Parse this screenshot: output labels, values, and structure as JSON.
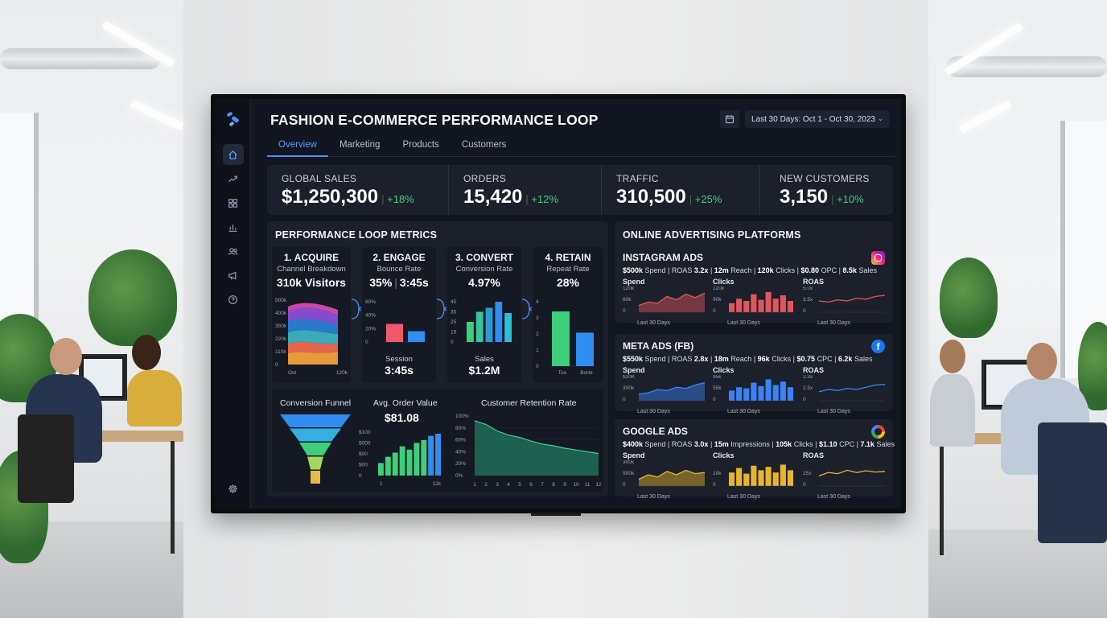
{
  "dashboard": {
    "title": "FASHION E-COMMERCE PERFORMANCE LOOP",
    "date_range": "Last 30 Days: Oct 1 - Oct 30, 2023",
    "tabs": [
      {
        "label": "Overview",
        "active": true
      },
      {
        "label": "Marketing",
        "active": false
      },
      {
        "label": "Products",
        "active": false
      },
      {
        "label": "Customers",
        "active": false
      }
    ],
    "sidebar_icons": [
      "home-icon",
      "trend-icon",
      "grid-icon",
      "bar-chart-icon",
      "users-icon",
      "megaphone-icon",
      "help-icon",
      "gear-icon"
    ],
    "accent_color": "#4f8ff7",
    "positive_color": "#3ecf7a"
  },
  "kpis": [
    {
      "label": "GLOBAL SALES",
      "value": "$1,250,300",
      "change": "+18%"
    },
    {
      "label": "ORDERS",
      "value": "15,420",
      "change": "+12%"
    },
    {
      "label": "TRAFFIC",
      "value": "310,500",
      "change": "+25%"
    },
    {
      "label": "NEW CUSTOMERS",
      "value": "3,150",
      "change": "+10%"
    }
  ],
  "loop": {
    "title": "PERFORMANCE LOOP METRICS",
    "acquire": {
      "title": "1. ACQUIRE",
      "subtitle": "Channel Breakdown",
      "value": "310k Visitors",
      "y_ticks": [
        "500k",
        "400k",
        "350k",
        "220k",
        "110k",
        "0"
      ],
      "x_ticks": [
        "Ost",
        "120k"
      ]
    },
    "engage": {
      "title": "2. ENGAGE",
      "subtitle": "Bounce Rate",
      "value_a": "35%",
      "value_b": "3:45s",
      "y_ticks": [
        "60%",
        "40%",
        "20%",
        "0"
      ],
      "bars": [
        0.45,
        0.27
      ],
      "foot_label": "Session",
      "foot_value": "3:45s"
    },
    "convert": {
      "title": "3. CONVERT",
      "subtitle": "Conversion Rate",
      "value": "4.97%",
      "y_ticks": [
        "45",
        "35",
        "25",
        "15",
        "0"
      ],
      "bars": [
        0.5,
        0.75,
        0.85,
        1.0,
        0.72
      ],
      "foot_label": "Sales",
      "foot_value": "$1.2M"
    },
    "retain": {
      "title": "4. RETAIN",
      "subtitle": "Repeat Rate",
      "value": "28%",
      "y_ticks": [
        "4",
        "3",
        "2",
        "1",
        "0"
      ],
      "bars": [
        0.85,
        0.52
      ],
      "x_ticks": [
        "Too",
        "Borte"
      ]
    },
    "funnel_title": "Conversion Funnel",
    "aov": {
      "title": "Avg. Order Value",
      "value": "$81.08",
      "y_ticks": [
        "$100",
        "$000",
        "$00",
        "$00",
        "0"
      ],
      "bars": [
        0.3,
        0.45,
        0.55,
        0.7,
        0.62,
        0.78,
        0.85,
        0.95,
        1.0
      ],
      "x_ticks": [
        "1",
        "12k"
      ]
    },
    "retention": {
      "title": "Customer Retention Rate",
      "y_ticks": [
        "100%",
        "80%",
        "60%",
        "40%",
        "20%",
        "0%"
      ],
      "x_ticks": [
        "1",
        "2",
        "3",
        "4",
        "5",
        "6",
        "7",
        "8",
        "9",
        "10",
        "11",
        "12"
      ],
      "values": [
        0.92,
        0.86,
        0.75,
        0.68,
        0.64,
        0.58,
        0.53,
        0.5,
        0.46,
        0.43,
        0.4,
        0.37
      ]
    }
  },
  "ads": {
    "title": "ONLINE ADVERTISING PLATFORMS",
    "platforms": [
      {
        "name": "INSTAGRAM ADS",
        "icon": "instagram-icon",
        "color": "#e0575b",
        "stats": [
          [
            "$500k",
            " Spend | ROAS "
          ],
          [
            "3.2x",
            " | "
          ],
          [
            "12m",
            " Reach | "
          ],
          [
            "120k",
            " Clicks | "
          ],
          [
            "$0.80",
            " OPC | "
          ],
          [
            "8.5k",
            " Sales"
          ]
        ],
        "metrics": [
          {
            "label": "Spend",
            "ticks": [
              "120k",
              "60k",
              "0"
            ],
            "type": "area",
            "values": [
              0.3,
              0.45,
              0.4,
              0.7,
              0.55,
              0.8,
              0.65,
              0.85
            ]
          },
          {
            "label": "Clicks",
            "ticks": [
              "120k",
              "90k",
              "0"
            ],
            "type": "bar",
            "values": [
              0.4,
              0.6,
              0.5,
              0.8,
              0.55,
              0.9,
              0.6,
              0.75,
              0.5
            ]
          },
          {
            "label": "ROAS",
            "ticks": [
              "5.0x",
              "3.5x",
              "0"
            ],
            "type": "line",
            "values": [
              0.5,
              0.45,
              0.55,
              0.5,
              0.62,
              0.58,
              0.7,
              0.75
            ]
          }
        ],
        "foot": "Last 30 Days"
      },
      {
        "name": "META ADS (FB)",
        "icon": "facebook-icon",
        "color": "#3b82f6",
        "stats": [
          [
            "$550k",
            " Spend | ROAS "
          ],
          [
            "2.8x",
            " | "
          ],
          [
            "18m",
            " Reach | "
          ],
          [
            "96k",
            " Clicks | "
          ],
          [
            "$0.75",
            " CPC | "
          ],
          [
            "6.2k",
            " Sales"
          ]
        ],
        "metrics": [
          {
            "label": "Spend",
            "ticks": [
              "$20K",
              "300k",
              "0"
            ],
            "type": "area",
            "values": [
              0.3,
              0.35,
              0.5,
              0.45,
              0.6,
              0.55,
              0.7,
              0.8
            ]
          },
          {
            "label": "Clicks",
            "ticks": [
              "95k",
              "55k",
              "0"
            ],
            "type": "bar",
            "values": [
              0.45,
              0.6,
              0.55,
              0.8,
              0.65,
              0.95,
              0.7,
              0.85,
              0.6
            ]
          },
          {
            "label": "ROAS",
            "ticks": [
              "2.3x",
              "2.5x",
              "0"
            ],
            "type": "line",
            "values": [
              0.4,
              0.5,
              0.45,
              0.55,
              0.5,
              0.6,
              0.7,
              0.72
            ]
          }
        ],
        "foot": "Last 30 Days"
      },
      {
        "name": "GOOGLE ADS",
        "icon": "google-icon",
        "color": "#e7b52c",
        "stats": [
          [
            "$400k",
            " Spend | ROAS "
          ],
          [
            "3.0x",
            " | "
          ],
          [
            "15m",
            " Impressions | "
          ],
          [
            "105k",
            " Clicks | "
          ],
          [
            "$1.10",
            " CPC | "
          ],
          [
            "7.1k",
            " Sales"
          ]
        ],
        "metrics": [
          {
            "label": "Spend",
            "ticks": [
              "300k",
              "500k",
              "0"
            ],
            "type": "area",
            "values": [
              0.3,
              0.5,
              0.4,
              0.65,
              0.5,
              0.7,
              0.55,
              0.6
            ]
          },
          {
            "label": "Clicks",
            "ticks": [
              "",
              "10k",
              "0"
            ],
            "type": "bar",
            "values": [
              0.6,
              0.8,
              0.55,
              0.9,
              0.7,
              0.85,
              0.6,
              0.95,
              0.7
            ]
          },
          {
            "label": "ROAS",
            "ticks": [
              "",
              "25x",
              "0"
            ],
            "type": "line",
            "values": [
              0.45,
              0.6,
              0.55,
              0.7,
              0.6,
              0.68,
              0.62,
              0.65
            ]
          }
        ],
        "foot": "Last 30 Days"
      }
    ]
  }
}
